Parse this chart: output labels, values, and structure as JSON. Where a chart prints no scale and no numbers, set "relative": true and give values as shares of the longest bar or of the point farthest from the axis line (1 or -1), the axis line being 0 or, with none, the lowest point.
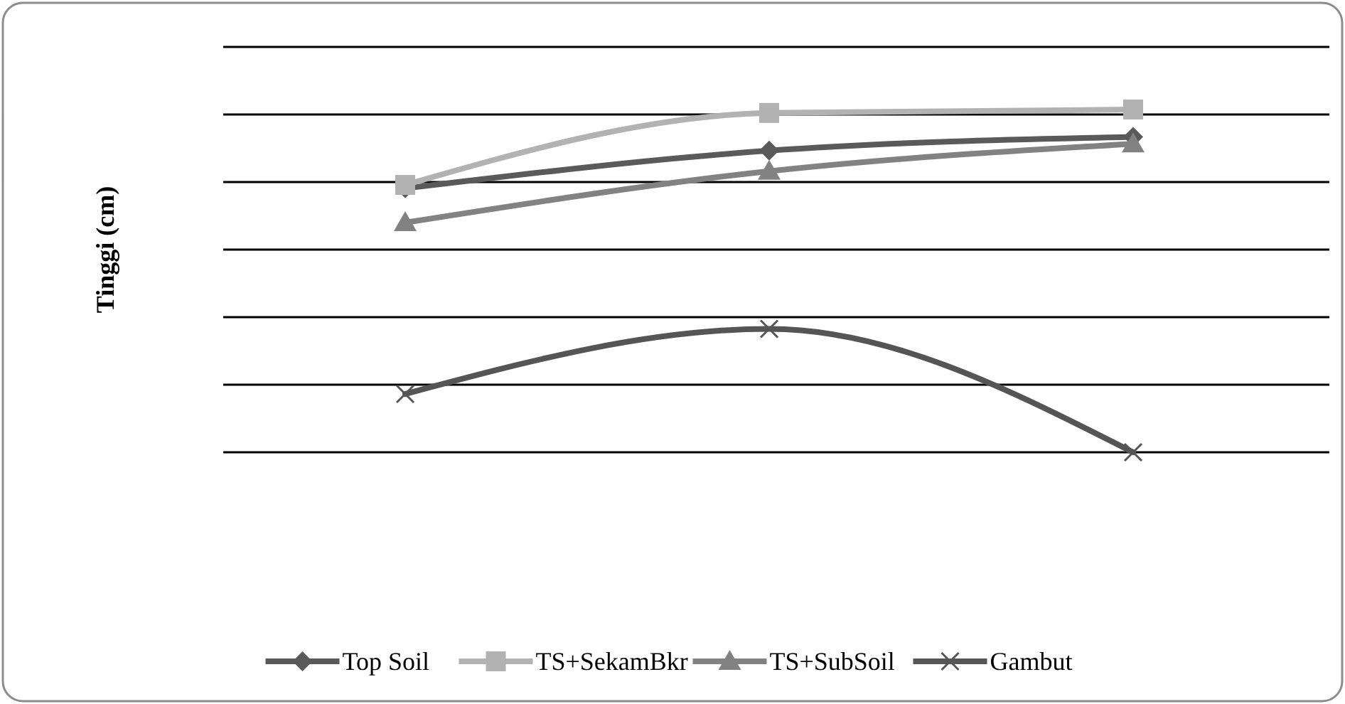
{
  "chart_data": {
    "type": "line",
    "relative": true,
    "ylabel": "Tinggi (cm)",
    "categories": [
      null,
      null,
      null
    ],
    "grid": "y",
    "legend": "bottom",
    "line_style": "solid",
    "series": [
      {
        "name": "Top Soil",
        "color": "#5a5a5a",
        "marker": "diamond",
        "values": [
          0.77,
          0.88,
          0.92
        ]
      },
      {
        "name": "TS+SekamBkr",
        "color": "#b2b2b2",
        "marker": "square",
        "values": [
          0.78,
          0.99,
          1
        ]
      },
      {
        "name": "TS+SubSoil",
        "color": "#828282",
        "marker": "triangle",
        "values": [
          0.67,
          0.82,
          0.9
        ]
      },
      {
        "name": "Gambut",
        "color": "#555555",
        "marker": "cross",
        "values": [
          0.17,
          0.36,
          0
        ]
      }
    ]
  }
}
